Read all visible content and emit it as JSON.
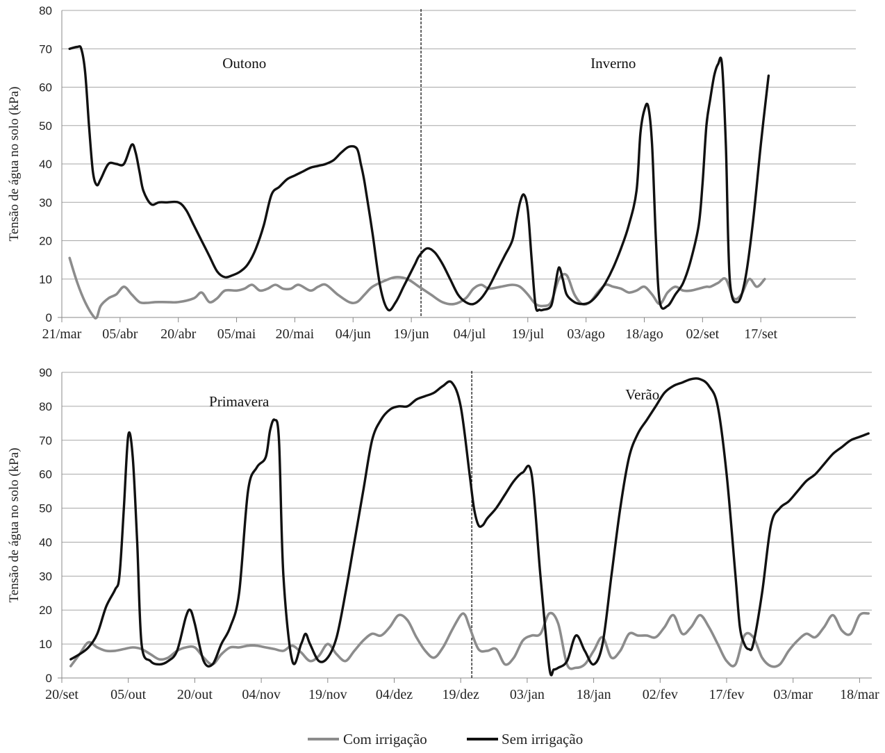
{
  "colors": {
    "com": "#8c8c8c",
    "sem": "#111111",
    "grid": "#a6a6a6",
    "axis": "#888888"
  },
  "legend": {
    "com_label": "Com irrigação",
    "sem_label": "Sem irrigação"
  },
  "chart_data": [
    {
      "type": "line",
      "ylabel": "Tensão de água no solo (kPa)",
      "ylim": [
        0,
        80
      ],
      "yticks": [
        0,
        10,
        20,
        30,
        40,
        50,
        60,
        70,
        80
      ],
      "xlim": [
        0,
        200
      ],
      "xticks": [
        {
          "x": 0,
          "label": "21/mar"
        },
        {
          "x": 15,
          "label": "05/abr"
        },
        {
          "x": 30,
          "label": "20/abr"
        },
        {
          "x": 45,
          "label": "05/mai"
        },
        {
          "x": 60,
          "label": "20/mai"
        },
        {
          "x": 75,
          "label": "04/jun"
        },
        {
          "x": 90,
          "label": "19/jun"
        },
        {
          "x": 105,
          "label": "04/jul"
        },
        {
          "x": 120,
          "label": "19/jul"
        },
        {
          "x": 135,
          "label": "03/ago"
        },
        {
          "x": 150,
          "label": "18/ago"
        },
        {
          "x": 165,
          "label": "02/set"
        },
        {
          "x": 180,
          "label": "17/set"
        }
      ],
      "divider_x": 92.5,
      "seasons": [
        {
          "label": "Outono",
          "x": 47,
          "y": 65
        },
        {
          "label": "Inverno",
          "x": 142,
          "y": 65
        }
      ],
      "series": [
        {
          "name": "Com irrigação",
          "x": [
            2,
            4,
            6,
            8,
            9,
            10,
            12,
            14,
            16,
            18,
            20,
            22,
            24,
            27,
            30,
            34,
            36,
            38,
            40,
            42,
            45,
            47,
            49,
            51,
            53,
            55,
            57,
            59,
            61,
            64,
            66,
            68,
            71,
            74,
            76,
            78,
            80,
            83,
            86,
            89,
            92,
            95,
            98,
            101,
            104,
            106,
            108,
            110,
            113,
            116,
            118,
            120,
            122,
            124,
            126,
            128,
            130,
            132,
            134,
            136,
            138,
            140,
            142,
            144,
            146,
            148,
            150,
            152,
            154,
            156,
            158,
            160,
            162,
            164,
            166,
            167,
            169,
            171,
            173,
            175,
            177,
            179,
            181
          ],
          "y": [
            15.5,
            9,
            4,
            0.5,
            0,
            3,
            5,
            6,
            8,
            6,
            4,
            3.8,
            4,
            4,
            4,
            5,
            6.5,
            4,
            5,
            7,
            7,
            7.5,
            8.5,
            7,
            7.5,
            8.5,
            7.5,
            7.5,
            8.5,
            7,
            8,
            8.5,
            6,
            4,
            4,
            6,
            8,
            9.5,
            10.5,
            10,
            8,
            6,
            4,
            3.5,
            5,
            7.5,
            8.5,
            7.5,
            8,
            8.5,
            8,
            6,
            3.5,
            3,
            4,
            10,
            11,
            6,
            3.5,
            4,
            6.5,
            8.5,
            8,
            7.5,
            6.5,
            7,
            8,
            6,
            3.5,
            6.5,
            8,
            7,
            7,
            7.5,
            8,
            8,
            9,
            10,
            5,
            6,
            10,
            8,
            10
          ]
        },
        {
          "name": "Sem irrigação",
          "x": [
            2,
            4,
            5,
            6,
            7,
            8,
            9,
            10,
            12,
            14,
            16,
            18,
            19,
            20,
            21,
            23,
            25,
            27,
            30,
            32,
            34,
            36,
            38,
            40,
            42,
            44,
            46,
            48,
            50,
            52,
            54,
            56,
            58,
            60,
            62,
            64,
            66,
            68,
            70,
            72,
            74,
            76,
            77,
            78,
            80,
            82,
            84,
            86,
            88,
            90,
            91,
            92,
            94,
            96,
            98,
            100,
            102,
            104,
            106,
            108,
            110,
            112,
            114,
            116,
            117,
            118,
            119,
            120,
            121,
            122,
            123,
            124,
            126,
            127,
            128,
            129,
            130,
            132,
            134,
            136,
            138,
            140,
            142,
            144,
            146,
            148,
            149,
            150,
            151,
            152,
            153,
            154,
            156,
            158,
            160,
            162,
            164,
            165,
            166,
            167,
            168,
            169,
            170,
            171,
            172,
            174,
            176,
            178,
            180,
            182
          ],
          "y": [
            70,
            70.5,
            70,
            64,
            50,
            38,
            34.5,
            36,
            40,
            40,
            40,
            45,
            43,
            38,
            33,
            29.5,
            30,
            30,
            30,
            28,
            24,
            20,
            16,
            12,
            10.5,
            11,
            12,
            14,
            18,
            24,
            32,
            34,
            36,
            37,
            38,
            39,
            39.5,
            40,
            41,
            43,
            44.5,
            44,
            40,
            35,
            22,
            8,
            2,
            4,
            8,
            12,
            14,
            16,
            18,
            17,
            14,
            10,
            6,
            4,
            3.5,
            5,
            8,
            12,
            16,
            20,
            25,
            30,
            32,
            28,
            15,
            3,
            2,
            2,
            3,
            8,
            13,
            10,
            6,
            4,
            3.5,
            4,
            6,
            9,
            13,
            18,
            24,
            33,
            48,
            54,
            55,
            45,
            20,
            4,
            3,
            6,
            9,
            15,
            24,
            35,
            50,
            57,
            63,
            66,
            66,
            45,
            10,
            4,
            10,
            25,
            45,
            63
          ]
        }
      ]
    },
    {
      "type": "line",
      "ylabel": "Tensão de água no solo (kPa)",
      "ylim": [
        0,
        90
      ],
      "yticks": [
        0,
        10,
        20,
        30,
        40,
        50,
        60,
        70,
        80,
        90
      ],
      "xlim": [
        0,
        177
      ],
      "xticks": [
        {
          "x": 0,
          "label": "20/set"
        },
        {
          "x": 15,
          "label": "05/out"
        },
        {
          "x": 30,
          "label": "20/out"
        },
        {
          "x": 45,
          "label": "04/nov"
        },
        {
          "x": 60,
          "label": "19/nov"
        },
        {
          "x": 75,
          "label": "04/dez"
        },
        {
          "x": 90,
          "label": "19/dez"
        },
        {
          "x": 105,
          "label": "03/jan"
        },
        {
          "x": 120,
          "label": "18/jan"
        },
        {
          "x": 135,
          "label": "02/fev"
        },
        {
          "x": 150,
          "label": "17/fev"
        },
        {
          "x": 165,
          "label": "03/mar"
        },
        {
          "x": 180,
          "label": "18/mar"
        }
      ],
      "divider_x": 92.5,
      "seasons": [
        {
          "label": "Primavera",
          "x": 40,
          "y": 80
        },
        {
          "label": "Verão",
          "x": 131,
          "y": 82
        }
      ],
      "series": [
        {
          "name": "Com irrigação",
          "x": [
            2,
            4,
            6,
            8,
            10,
            12,
            14,
            16,
            18,
            20,
            22,
            24,
            26,
            28,
            30,
            32,
            34,
            36,
            38,
            40,
            42,
            44,
            46,
            48,
            50,
            52,
            54,
            56,
            58,
            60,
            62,
            64,
            66,
            68,
            70,
            72,
            74,
            76,
            78,
            80,
            82,
            84,
            86,
            88,
            90,
            91,
            92,
            94,
            96,
            98,
            100,
            102,
            104,
            106,
            108,
            110,
            112,
            114,
            116,
            118,
            120,
            122,
            124,
            126,
            128,
            130,
            132,
            134,
            136,
            138,
            140,
            142,
            144,
            146,
            148,
            150,
            152,
            154,
            156,
            158,
            160,
            162,
            164,
            166,
            168,
            170,
            172,
            174,
            176,
            178,
            180,
            182
          ],
          "y": [
            3.5,
            7,
            10.5,
            9,
            8,
            8,
            8.5,
            9,
            8.5,
            7,
            5.5,
            6,
            8,
            9,
            9,
            6,
            4,
            7,
            9,
            9,
            9.5,
            9.5,
            9,
            8.5,
            8,
            9.5,
            7.5,
            5,
            6.5,
            10,
            7,
            5,
            8,
            11,
            13,
            12.5,
            15,
            18.5,
            17,
            12,
            8,
            6,
            9,
            14,
            18.5,
            18.5,
            15,
            8.5,
            8,
            8.5,
            4,
            6,
            11,
            12.5,
            13,
            19,
            16,
            4,
            3,
            4,
            8,
            12,
            6,
            8,
            13,
            12.5,
            12.5,
            12,
            15,
            18.5,
            13,
            15,
            18.5,
            15,
            10,
            5,
            4,
            12.5,
            12,
            6,
            3.5,
            4,
            8,
            11,
            13,
            12,
            15,
            18.5,
            14,
            13,
            18.5,
            19
          ]
        },
        {
          "name": "Sem irrigação",
          "x": [
            2,
            4,
            6,
            8,
            10,
            12,
            13,
            14,
            15,
            16,
            17,
            18,
            20,
            22,
            24,
            26,
            28,
            29,
            30,
            32,
            34,
            36,
            38,
            40,
            42,
            44,
            46,
            47,
            48,
            49,
            50,
            52,
            54,
            55,
            56,
            58,
            60,
            62,
            64,
            66,
            68,
            70,
            72,
            74,
            76,
            78,
            80,
            82,
            84,
            86,
            88,
            90,
            92,
            93,
            94,
            95,
            96,
            98,
            100,
            102,
            104,
            106,
            108,
            110,
            111,
            112,
            114,
            116,
            118,
            120,
            122,
            124,
            126,
            128,
            130,
            132,
            134,
            136,
            138,
            140,
            142,
            144,
            146,
            148,
            150,
            152,
            153,
            154,
            155,
            156,
            158,
            160,
            162,
            164,
            166,
            168,
            170,
            172,
            174,
            176,
            178,
            180,
            182
          ],
          "y": [
            5.5,
            7,
            9,
            13,
            21,
            26,
            30,
            50,
            71.5,
            65,
            40,
            10,
            5,
            4,
            5,
            8,
            18,
            20,
            16,
            5,
            4,
            10,
            15,
            25,
            55,
            62,
            65,
            73,
            76,
            70,
            30,
            5,
            10,
            13,
            10,
            5,
            6,
            12,
            25,
            40,
            55,
            70,
            76,
            79,
            80,
            80,
            82,
            83,
            84,
            86,
            87,
            80,
            60,
            50,
            45,
            45,
            47,
            50,
            54,
            58,
            60.5,
            60,
            30,
            3,
            2.5,
            3,
            5,
            12.5,
            8,
            4,
            10,
            30,
            50,
            65,
            72,
            76,
            80,
            84,
            86,
            87,
            88,
            88,
            86,
            80,
            60,
            30,
            15,
            10,
            8.5,
            10,
            25,
            45,
            50,
            52,
            55,
            58,
            60,
            63,
            66,
            68,
            70,
            71,
            72
          ]
        }
      ]
    }
  ]
}
